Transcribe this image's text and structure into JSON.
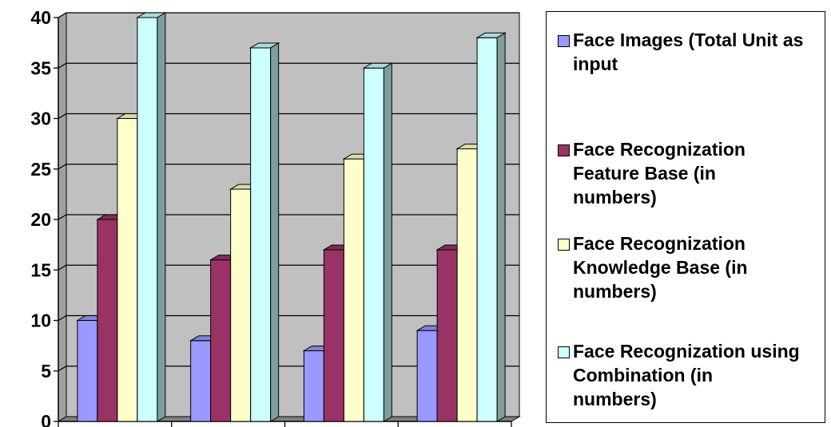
{
  "chart_data": {
    "type": "bar",
    "style": "3d-clustered-column",
    "title": "",
    "xlabel": "",
    "ylabel": "",
    "categories": [
      "",
      "",
      "",
      ""
    ],
    "ylim": [
      0,
      40
    ],
    "yticks": [
      "0",
      "5",
      "10",
      "15",
      "20",
      "25",
      "30",
      "35",
      "40"
    ],
    "grid": true,
    "legend_position": "right",
    "series": [
      {
        "name": "Face Images (Total Unit as\ninput",
        "values": [
          10,
          8,
          7,
          9
        ],
        "color": "#9999ff"
      },
      {
        "name": "Face Recognization\nFeature Base (in\nnumbers)",
        "values": [
          20,
          16,
          17,
          17
        ],
        "color": "#993366"
      },
      {
        "name": "Face Recognization\nKnowledge Base (in\nnumbers)",
        "values": [
          30,
          23,
          26,
          27
        ],
        "color": "#ffffcc"
      },
      {
        "name": "Face Recognization using\nCombination (in\nnumbers)",
        "values": [
          40,
          37,
          35,
          38
        ],
        "color": "#ccffff"
      }
    ],
    "plot_background": "#c0c0c0"
  }
}
